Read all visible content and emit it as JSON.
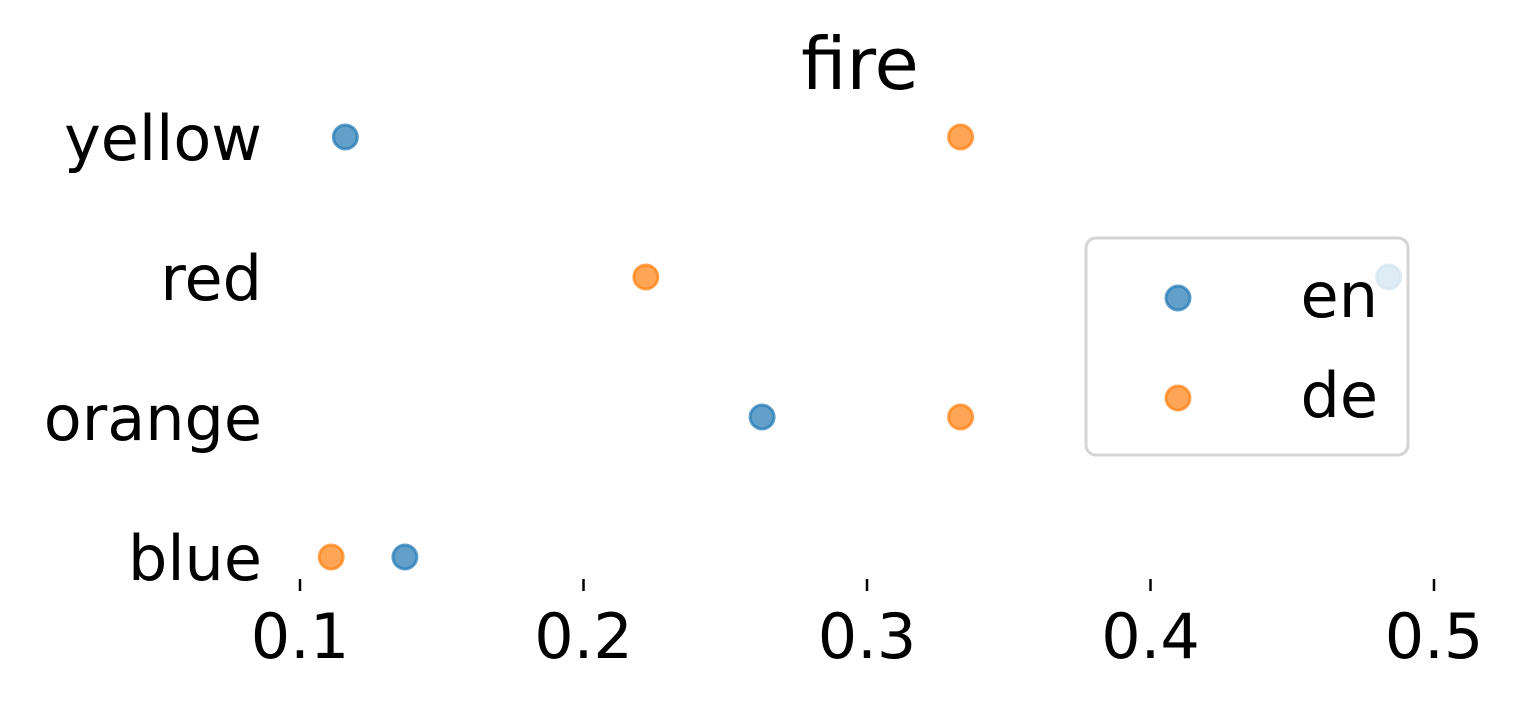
{
  "chart_data": {
    "type": "scatter",
    "title": "fire",
    "xlabel": "",
    "ylabel": "",
    "xlim": [
      0.1,
      0.5
    ],
    "xticks": [
      0.1,
      0.2,
      0.3,
      0.4,
      0.5
    ],
    "xtick_labels": [
      "0.1",
      "0.2",
      "0.3",
      "0.4",
      "0.5"
    ],
    "categories": [
      "yellow",
      "red",
      "orange",
      "blue"
    ],
    "series": [
      {
        "name": "en",
        "color": "#1f77b4",
        "points": [
          {
            "category": "yellow",
            "x": 0.116
          },
          {
            "category": "red",
            "x": 0.484
          },
          {
            "category": "orange",
            "x": 0.263
          },
          {
            "category": "blue",
            "x": 0.137
          }
        ]
      },
      {
        "name": "de",
        "color": "#ff7f0e",
        "points": [
          {
            "category": "yellow",
            "x": 0.333
          },
          {
            "category": "red",
            "x": 0.222
          },
          {
            "category": "orange",
            "x": 0.333
          },
          {
            "category": "blue",
            "x": 0.111
          }
        ]
      }
    ],
    "legend": {
      "placement": "right",
      "entries": [
        "en",
        "de"
      ]
    },
    "grid": false,
    "marker_alpha": 0.7
  }
}
